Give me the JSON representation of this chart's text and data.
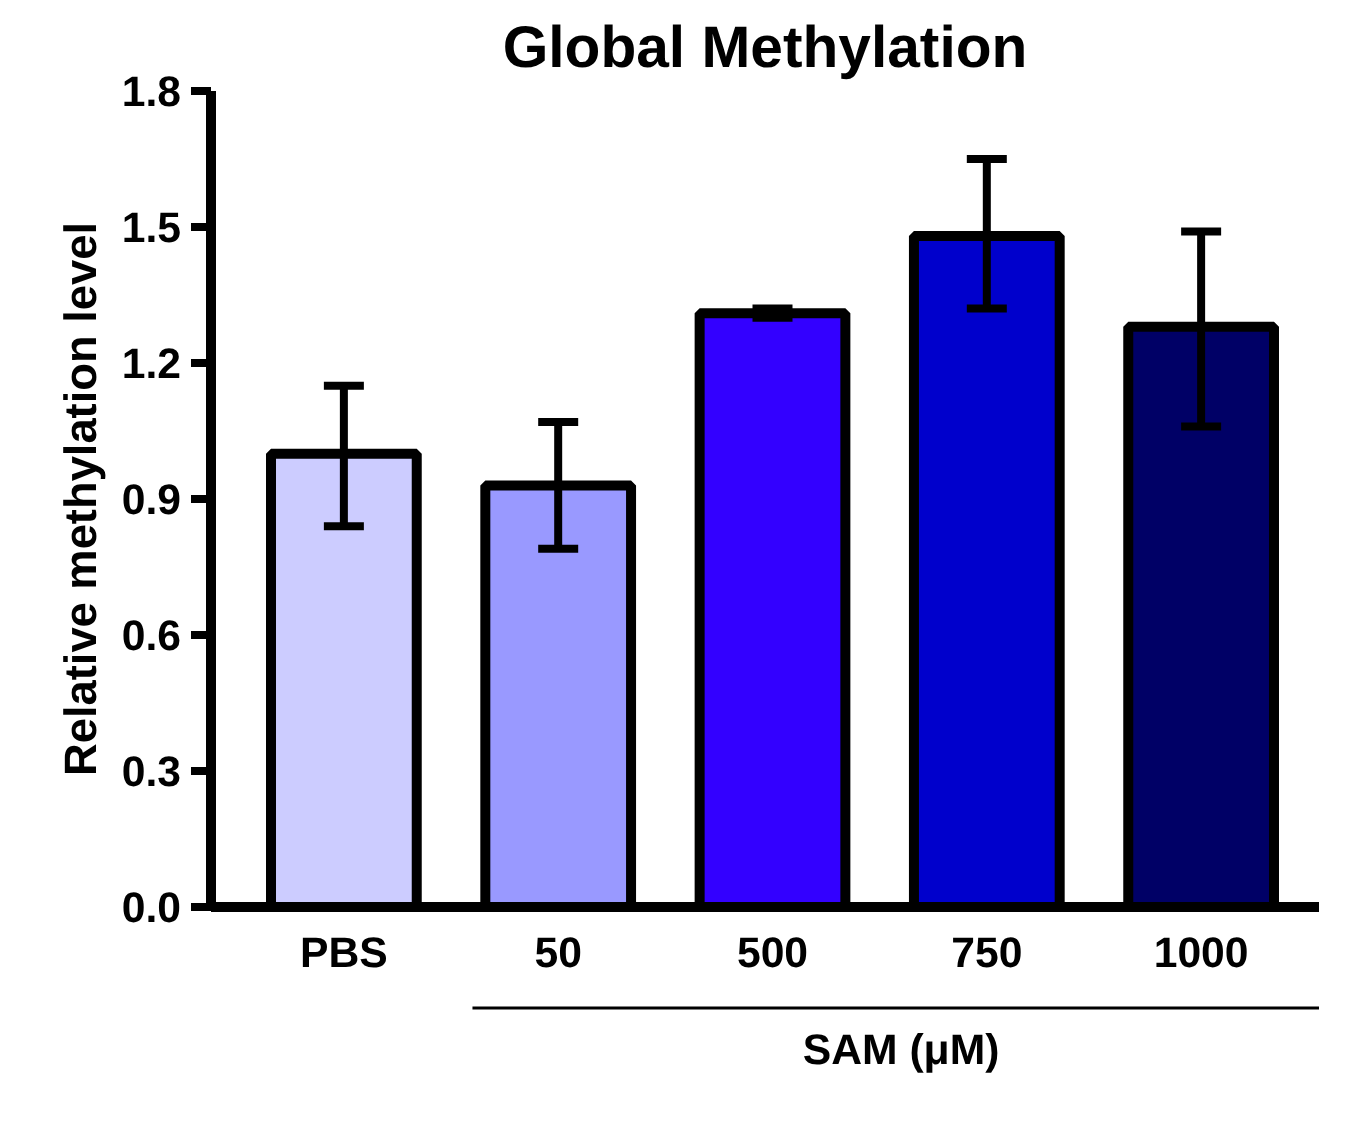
{
  "chart_data": {
    "type": "bar",
    "title": "Global Methylation",
    "ylabel": "Relative methylation level",
    "categories": [
      "PBS",
      "50",
      "500",
      "750",
      "1000"
    ],
    "values": [
      1.0,
      0.93,
      1.31,
      1.48,
      1.28
    ],
    "colors": [
      "#ccccff",
      "#9999ff",
      "#3300ff",
      "#0000cc",
      "#000066"
    ],
    "errors": [
      [
        0.84,
        1.15
      ],
      [
        0.79,
        1.07
      ],
      [
        1.3,
        1.32
      ],
      [
        1.32,
        1.65
      ],
      [
        1.06,
        1.49
      ]
    ],
    "ylim": [
      0,
      1.8
    ],
    "yticks": [
      {
        "value": 0,
        "label": "0.0"
      },
      0.3,
      0.6,
      0.9,
      1.2,
      1.5,
      1.8
    ],
    "annotations": [
      "SAM (μM)"
    ],
    "grid": false
  }
}
